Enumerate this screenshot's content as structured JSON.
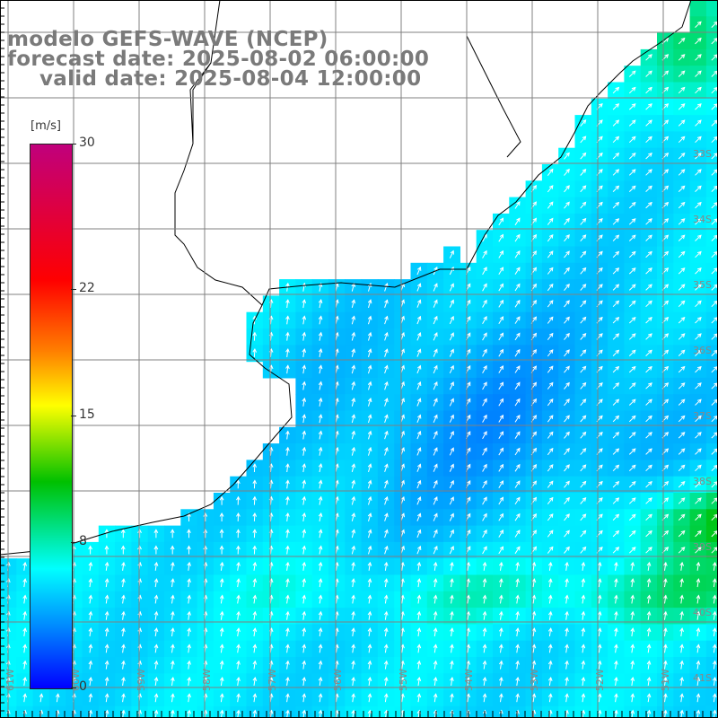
{
  "title": {
    "model": "modelo GEFS-WAVE (NCEP)",
    "forecast": "forecast date: 2025-08-02 06:00:00",
    "valid": "valid date: 2025-08-04 12:00:00"
  },
  "colorbar": {
    "units": "[m/s]",
    "ticks": [
      "30",
      "22",
      "15",
      "8",
      "0"
    ],
    "tick_values": [
      30,
      22,
      15,
      8,
      0
    ],
    "range": [
      0,
      30
    ],
    "colors": [
      "#0000ff",
      "#0090ff",
      "#00ffff",
      "#00c000",
      "#ffff00",
      "#ff7f00",
      "#ff0000",
      "#c0007c"
    ]
  },
  "axes": {
    "lon_labels": [
      "61W",
      "60W",
      "59W",
      "58W",
      "57W",
      "56W",
      "55W",
      "54W",
      "53W",
      "52W",
      "51W"
    ],
    "lat_labels": [
      "33S",
      "34S",
      "35S",
      "36S",
      "37S",
      "38S",
      "39S",
      "40S",
      "41S"
    ]
  },
  "legend_position": "left",
  "field": {
    "quantity": "wind speed",
    "arrows": "white, pointing mostly north / north-east"
  }
}
